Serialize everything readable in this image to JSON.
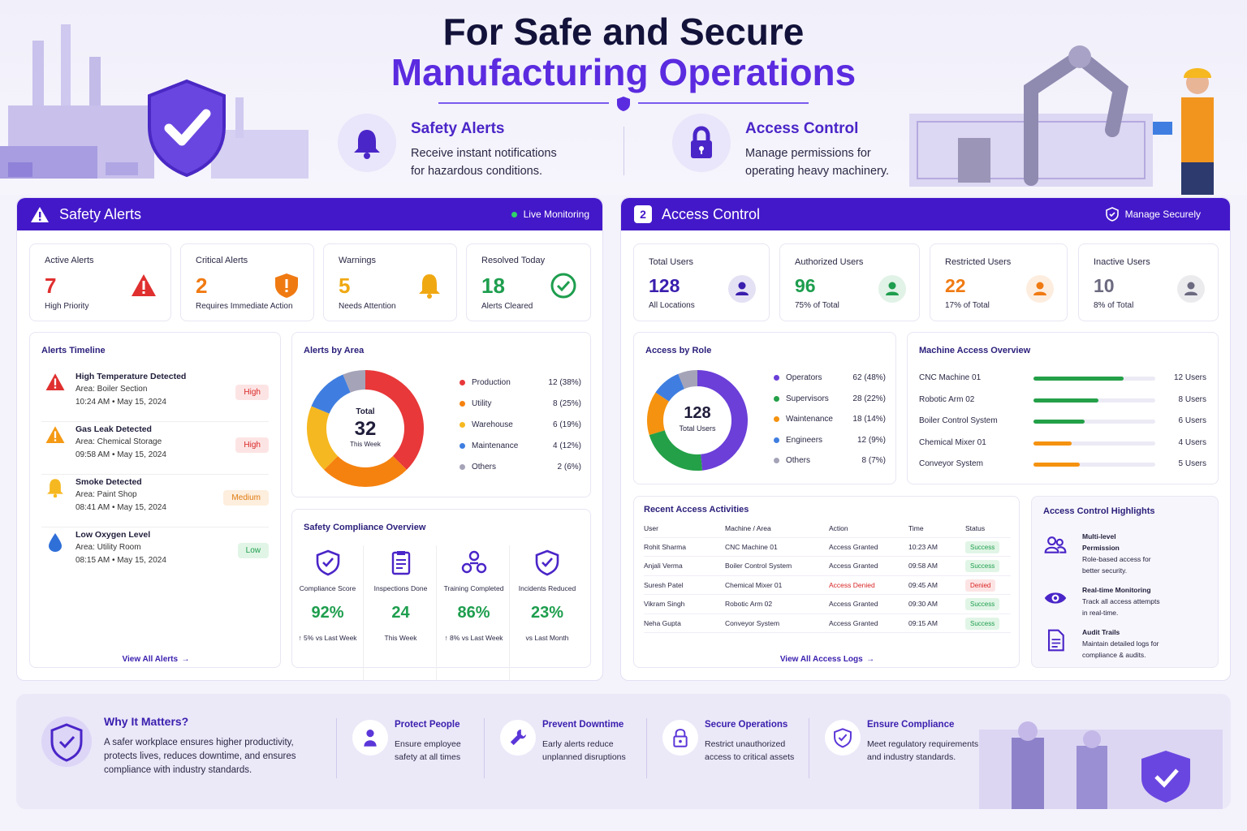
{
  "hero": {
    "title_line1": "For Safe and Secure",
    "title_line2": "Manufacturing Operations",
    "features": [
      {
        "title": "Safety Alerts",
        "line1": "Receive instant notifications",
        "line2": "for hazardous conditions.",
        "icon": "bell-icon"
      },
      {
        "title": "Access Control",
        "line1": "Manage permissions for",
        "line2": "operating heavy machinery.",
        "icon": "lock-icon"
      }
    ]
  },
  "safety": {
    "header": "Safety Alerts",
    "status": "Live Monitoring",
    "stats": [
      {
        "label": "Active Alerts",
        "value": "7",
        "sub": "High Priority",
        "color": "#e02f2f",
        "icon": "warning-triangle-icon"
      },
      {
        "label": "Critical Alerts",
        "value": "2",
        "sub": "Requires Immediate Action",
        "color": "#f07a12",
        "icon": "shield-alert-icon"
      },
      {
        "label": "Warnings",
        "value": "5",
        "sub": "Needs Attention",
        "color": "#f0a812",
        "icon": "bell-icon"
      },
      {
        "label": "Resolved Today",
        "value": "18",
        "sub": "Alerts Cleared",
        "color": "#1e9e4e",
        "icon": "check-circle-icon"
      }
    ],
    "timeline": {
      "title": "Alerts Timeline",
      "items": [
        {
          "title": "High Temperature Detected",
          "area": "Area: Boiler Section",
          "time": "10:24 AM  •  May 15, 2024",
          "level": "High"
        },
        {
          "title": "Gas Leak Detected",
          "area": "Area: Chemical Storage",
          "time": "09:58 AM  •  May 15, 2024",
          "level": "High"
        },
        {
          "title": "Smoke Detected",
          "area": "Area: Paint Shop",
          "time": "08:41 AM  •  May 15, 2024",
          "level": "Medium"
        },
        {
          "title": "Low Oxygen Level",
          "area": "Area: Utility Room",
          "time": "08:15 AM  •  May 15, 2024",
          "level": "Low"
        }
      ],
      "link": "View All Alerts"
    },
    "by_area": {
      "title": "Alerts by Area",
      "total_label": "Total",
      "total": "32",
      "period": "This Week",
      "items": [
        {
          "name": "Production",
          "value": 12,
          "text": "12 (38%)",
          "color": "#e8383a"
        },
        {
          "name": "Utility",
          "value": 8,
          "text": "8 (25%)",
          "color": "#f5820f"
        },
        {
          "name": "Warehouse",
          "value": 6,
          "text": "6 (19%)",
          "color": "#f6b820"
        },
        {
          "name": "Maintenance",
          "value": 4,
          "text": "4 (12%)",
          "color": "#3f7ee0"
        },
        {
          "name": "Others",
          "value": 2,
          "text": "2  (6%)",
          "color": "#a5a3b8"
        }
      ]
    },
    "compliance": {
      "title": "Safety Compliance Overview",
      "items": [
        {
          "label": "Compliance Score",
          "value": "92%",
          "sub": "↑ 5% vs Last Week",
          "icon": "shield-check-icon"
        },
        {
          "label": "Inspections Done",
          "value": "24",
          "sub": "This Week",
          "icon": "clipboard-icon"
        },
        {
          "label": "Training Completed",
          "value": "86%",
          "sub": "↑ 8% vs Last Week",
          "icon": "team-icon"
        },
        {
          "label": "Incidents Reduced",
          "value": "23%",
          "sub": "vs Last Month",
          "icon": "shield-check-icon"
        }
      ]
    }
  },
  "access": {
    "header": "Access Control",
    "header_num": "2",
    "status": "Manage Securely",
    "stats": [
      {
        "label": "Total Users",
        "value": "128",
        "sub": "All Locations",
        "color": "#3a1eae",
        "icon": "user-icon"
      },
      {
        "label": "Authorized Users",
        "value": "96",
        "sub": "75% of Total",
        "color": "#1e9e4e",
        "icon": "user-icon"
      },
      {
        "label": "Restricted Users",
        "value": "22",
        "sub": "17% of Total",
        "color": "#f07a12",
        "icon": "user-icon"
      },
      {
        "label": "Inactive Users",
        "value": "10",
        "sub": "8% of Total",
        "color": "#6b6a80",
        "icon": "user-icon"
      }
    ],
    "by_role": {
      "title": "Access by Role",
      "total": "128",
      "total_label": "Total Users",
      "items": [
        {
          "name": "Operators",
          "value": 62,
          "text": "62 (48%)",
          "color": "#6b3fd8"
        },
        {
          "name": "Supervisors",
          "value": 28,
          "text": "28 (22%)",
          "color": "#24a048"
        },
        {
          "name": "Waintenance",
          "value": 18,
          "text": "18 (14%)",
          "color": "#f5920f"
        },
        {
          "name": "Engineers",
          "value": 12,
          "text": "12  (9%)",
          "color": "#3f7ee0"
        },
        {
          "name": "Others",
          "value": 8,
          "text": "8  (7%)",
          "color": "#a5a3b8"
        }
      ]
    },
    "machines": {
      "title": "Machine Access Overview",
      "items": [
        {
          "name": "CNC Machine 01",
          "users": "12 Users",
          "fraction": 0.74,
          "color": "#24a048"
        },
        {
          "name": "Robotic Arm 02",
          "users": "8 Users",
          "fraction": 0.53,
          "color": "#24a048"
        },
        {
          "name": "Boiler Control System",
          "users": "6 Users",
          "fraction": 0.42,
          "color": "#24a048"
        },
        {
          "name": "Chemical Mixer 01",
          "users": "4 Users",
          "fraction": 0.31,
          "color": "#f5920f"
        },
        {
          "name": "Conveyor System",
          "users": "5 Users",
          "fraction": 0.38,
          "color": "#f5920f"
        }
      ]
    },
    "recent": {
      "title": "Recent Access Activities",
      "columns": [
        "User",
        "Machine / Area",
        "Action",
        "Time",
        "Status"
      ],
      "rows": [
        [
          "Rohit Sharma",
          "CNC Machine 01",
          "Access Granted",
          "10:23 AM",
          "Success"
        ],
        [
          "Anjali Verma",
          "Boiler Control System",
          "Access Granted",
          "09:58 AM",
          "Success"
        ],
        [
          "Suresh Patel",
          "Chemical Mixer 01",
          "Access Denied",
          "09:45 AM",
          "Denied"
        ],
        [
          "Vikram Singh",
          "Robotic Arm 02",
          "Access Granted",
          "09:30 AM",
          "Success"
        ],
        [
          "Neha Gupta",
          "Conveyor System",
          "Access Granted",
          "09:15 AM",
          "Success"
        ]
      ],
      "link": "View All Access Logs"
    },
    "highlights": {
      "title": "Access Control Highlights",
      "items": [
        {
          "title1": "Multi-level",
          "title2": "Permission",
          "d1": "Role-based access for",
          "d2": "better security.",
          "icon": "users-icon"
        },
        {
          "title1": "Real-time Monitoring",
          "title2": "",
          "d1": "Track all access attempts",
          "d2": "in real-time.",
          "icon": "eye-icon"
        },
        {
          "title1": "Audit Trails",
          "title2": "",
          "d1": "Maintain detailed logs for",
          "d2": "compliance & audits.",
          "icon": "document-icon"
        }
      ]
    }
  },
  "why": {
    "title": "Why It Matters?",
    "lines": [
      "A safer workplace ensures higher productivity,",
      "protects lives, reduces downtime, and ensures",
      "compliance with industry standards."
    ],
    "items": [
      {
        "title": "Protect People",
        "l1": "Ensure employee",
        "l2": "safety at all times",
        "icon": "person-icon"
      },
      {
        "title": "Prevent Downtime",
        "l1": "Early alerts reduce",
        "l2": "unplanned disruptions",
        "icon": "wrench-icon"
      },
      {
        "title": "Secure Operations",
        "l1": "Restrict unauthorized",
        "l2": "access to critical assets",
        "icon": "lock-icon"
      },
      {
        "title": "Ensure Compliance",
        "l1": "Meet regulatory requirements",
        "l2": "and industry standards.",
        "icon": "shield-check-icon"
      }
    ]
  },
  "colors": {
    "brand": "#4318c9",
    "accent": "#5b2be0",
    "success": "#1e9e4e",
    "danger": "#e02f2f"
  }
}
